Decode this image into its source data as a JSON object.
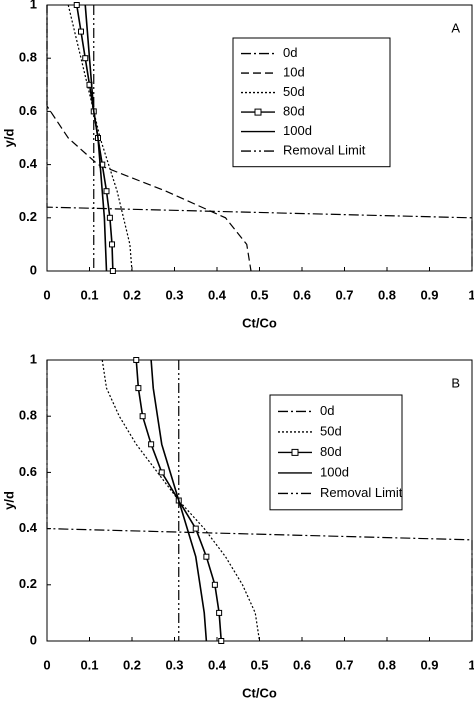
{
  "chart_data": [
    {
      "type": "line",
      "annotation": "A",
      "xlabel": "Ct/Co",
      "ylabel": "y/d",
      "xlim": [
        0,
        1
      ],
      "ylim": [
        0,
        1
      ],
      "xticks": [
        0,
        0.1,
        0.2,
        0.3,
        0.4,
        0.5,
        0.6,
        0.7,
        0.8,
        0.9,
        1
      ],
      "yticks": [
        0,
        0.2,
        0.4,
        0.6,
        0.8,
        1
      ],
      "series": [
        {
          "name": "0d",
          "color": "#000000",
          "style": "dashdot",
          "x": [
            0,
            0,
            1,
            1
          ],
          "y": [
            1,
            0.24,
            0.2,
            0
          ]
        },
        {
          "name": "10d",
          "color": "#000000",
          "style": "dash",
          "x": [
            0,
            0,
            0.05,
            0.12,
            0.2,
            0.28,
            0.35,
            0.42,
            0.47,
            0.48
          ],
          "y": [
            1,
            0.62,
            0.5,
            0.4,
            0.35,
            0.3,
            0.25,
            0.2,
            0.1,
            0
          ]
        },
        {
          "name": "50d",
          "color": "#000000",
          "style": "dot",
          "x": [
            0.05,
            0.065,
            0.08,
            0.095,
            0.11,
            0.125,
            0.145,
            0.165,
            0.18,
            0.195,
            0.2
          ],
          "y": [
            1,
            0.9,
            0.8,
            0.7,
            0.6,
            0.5,
            0.4,
            0.3,
            0.2,
            0.1,
            0
          ]
        },
        {
          "name": "80d",
          "color": "#000000",
          "style": "square",
          "x": [
            0.07,
            0.08,
            0.09,
            0.1,
            0.11,
            0.12,
            0.13,
            0.14,
            0.148,
            0.153,
            0.155
          ],
          "y": [
            1,
            0.9,
            0.8,
            0.7,
            0.6,
            0.5,
            0.4,
            0.3,
            0.2,
            0.1,
            0
          ]
        },
        {
          "name": "100d",
          "color": "#000000",
          "style": "solid",
          "x": [
            0.09,
            0.1,
            0.11,
            0.12,
            0.125,
            0.13,
            0.135,
            0.14
          ],
          "y": [
            1,
            0.8,
            0.6,
            0.5,
            0.4,
            0.3,
            0.2,
            0
          ]
        },
        {
          "name": "Removal Limit",
          "color": "#000000",
          "style": "dashdotdot",
          "x": [
            0.11,
            0.11
          ],
          "y": [
            1,
            0
          ]
        }
      ]
    },
    {
      "type": "line",
      "annotation": "B",
      "xlabel": "Ct/Co",
      "ylabel": "y/d",
      "xlim": [
        0,
        1
      ],
      "ylim": [
        0,
        1
      ],
      "xticks": [
        0,
        0.1,
        0.2,
        0.3,
        0.4,
        0.5,
        0.6,
        0.7,
        0.8,
        0.9,
        1
      ],
      "yticks": [
        0,
        0.2,
        0.4,
        0.6,
        0.8,
        1
      ],
      "series": [
        {
          "name": "0d",
          "color": "#000000",
          "style": "dashdot",
          "x": [
            0,
            0,
            1,
            1
          ],
          "y": [
            1,
            0.4,
            0.36,
            0
          ]
        },
        {
          "name": "50d",
          "color": "#000000",
          "style": "dot",
          "x": [
            0.13,
            0.14,
            0.17,
            0.21,
            0.26,
            0.31,
            0.37,
            0.42,
            0.46,
            0.49,
            0.5
          ],
          "y": [
            1,
            0.9,
            0.8,
            0.7,
            0.6,
            0.5,
            0.4,
            0.3,
            0.2,
            0.1,
            0
          ]
        },
        {
          "name": "80d",
          "color": "#000000",
          "style": "square",
          "x": [
            0.21,
            0.215,
            0.225,
            0.245,
            0.27,
            0.31,
            0.35,
            0.375,
            0.395,
            0.405,
            0.41
          ],
          "y": [
            1,
            0.9,
            0.8,
            0.7,
            0.6,
            0.5,
            0.4,
            0.3,
            0.2,
            0.1,
            0
          ]
        },
        {
          "name": "100d",
          "color": "#000000",
          "style": "solid",
          "x": [
            0.245,
            0.25,
            0.26,
            0.27,
            0.29,
            0.31,
            0.33,
            0.35,
            0.36,
            0.37,
            0.375
          ],
          "y": [
            1,
            0.9,
            0.8,
            0.7,
            0.6,
            0.5,
            0.4,
            0.3,
            0.2,
            0.1,
            0
          ]
        },
        {
          "name": "Removal Limit",
          "color": "#000000",
          "style": "dashdotdot",
          "x": [
            0.31,
            0.31
          ],
          "y": [
            1,
            0
          ]
        }
      ]
    }
  ]
}
